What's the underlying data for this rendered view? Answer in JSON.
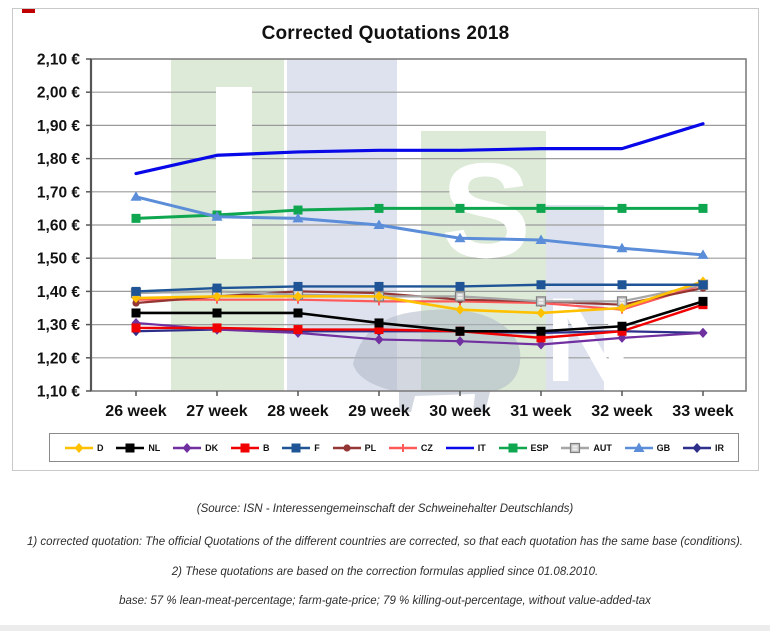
{
  "header": {
    "title": "Corrected Quotations 2018"
  },
  "chart_data": {
    "type": "line",
    "title": "Corrected Quotations 2018",
    "x_categories": [
      "26 week",
      "27 week",
      "28 week",
      "29 week",
      "30 week",
      "31 week",
      "32 week",
      "33 week"
    ],
    "y_axis": {
      "min": 1.1,
      "max": 2.1,
      "step": 0.1,
      "unit": "€",
      "tick_labels": [
        "2,10 €",
        "2,00 €",
        "1,90 €",
        "1,80 €",
        "1,70 €",
        "1,60 €",
        "1,50 €",
        "1,40 €",
        "1,30 €",
        "1,20 €",
        "1,10 €"
      ]
    },
    "grid": true,
    "legend_position": "bottom",
    "series": [
      {
        "name": "D",
        "color": "#FFC000",
        "marker": "diamond",
        "values": [
          1.38,
          1.385,
          1.385,
          1.385,
          1.345,
          1.335,
          1.35,
          1.43
        ]
      },
      {
        "name": "NL",
        "color": "#000000",
        "marker": "square",
        "values": [
          1.335,
          1.335,
          1.335,
          1.305,
          1.28,
          1.28,
          1.295,
          1.37
        ]
      },
      {
        "name": "DK",
        "color": "#7030A0",
        "marker": "diamond",
        "values": [
          1.305,
          1.285,
          1.275,
          1.255,
          1.25,
          1.24,
          1.26,
          1.275
        ]
      },
      {
        "name": "B",
        "color": "#F00000",
        "marker": "square",
        "values": [
          1.29,
          1.29,
          1.285,
          1.285,
          1.28,
          1.26,
          1.28,
          1.36
        ]
      },
      {
        "name": "F",
        "color": "#1F5597",
        "marker": "square",
        "values": [
          1.4,
          1.41,
          1.415,
          1.415,
          1.415,
          1.42,
          1.42,
          1.42
        ]
      },
      {
        "name": "PL",
        "color": "#943634",
        "marker": "circle",
        "values": [
          1.365,
          1.385,
          1.4,
          1.395,
          1.375,
          1.37,
          1.36,
          1.41
        ]
      },
      {
        "name": "CZ",
        "color": "#FF5A5A",
        "marker": "plus",
        "values": [
          1.375,
          1.375,
          1.375,
          1.37,
          1.37,
          1.365,
          1.345,
          1.42
        ]
      },
      {
        "name": "IT",
        "color": "#0808E8",
        "marker": "none",
        "values": [
          1.755,
          1.81,
          1.82,
          1.825,
          1.825,
          1.83,
          1.83,
          1.905
        ]
      },
      {
        "name": "ESP",
        "color": "#0FA650",
        "marker": "square",
        "values": [
          1.62,
          1.63,
          1.645,
          1.65,
          1.65,
          1.65,
          1.65,
          1.65
        ]
      },
      {
        "name": "AUT",
        "color": "#A6A6A6",
        "marker": "open-square",
        "values": [
          1.395,
          1.4,
          1.39,
          1.385,
          1.385,
          1.37,
          1.37,
          1.42
        ]
      },
      {
        "name": "GB",
        "color": "#5B8DD9",
        "marker": "triangle",
        "values": [
          1.685,
          1.625,
          1.62,
          1.6,
          1.56,
          1.555,
          1.53,
          1.51
        ]
      },
      {
        "name": "IR",
        "color": "#2E2E8B",
        "marker": "diamond",
        "values": [
          1.28,
          1.285,
          1.28,
          1.28,
          1.28,
          1.275,
          1.28,
          1.275
        ]
      }
    ],
    "watermark_text": "ISN"
  },
  "footer": {
    "lines": [
      "(Source: ISN - Interessengemeinschaft der Schweinehalter Deutschlands)",
      "1) corrected quotation: The official Quotations of the different countries are corrected, so that each quotation has the same base (conditions).",
      "2) These quotations are based on the correction formulas applied since 01.08.2010.",
      "base: 57 % lean-meat-percentage; farm-gate-price; 79 % killing-out-percentage, without value-added-tax"
    ]
  }
}
